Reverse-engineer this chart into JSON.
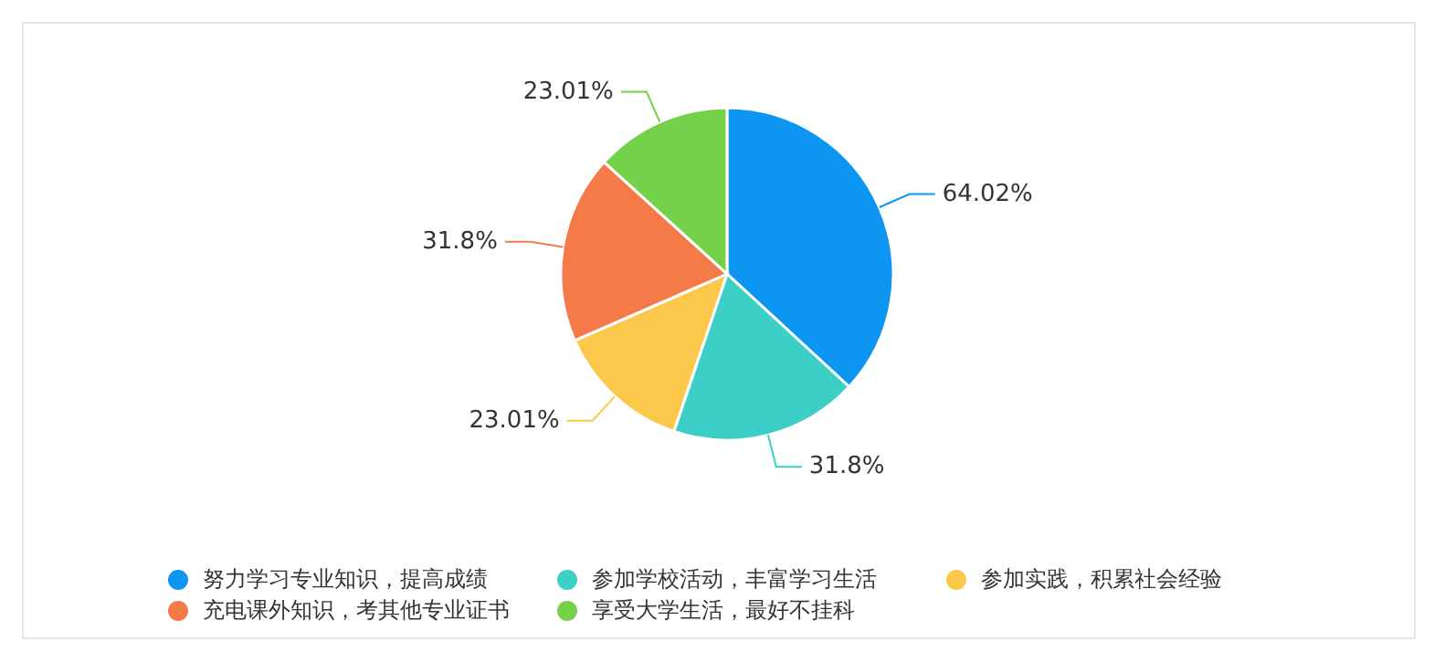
{
  "chart_data": {
    "type": "pie",
    "categories": [
      "努力学习专业知识，提高成绩",
      "参加学校活动，丰富学习生活",
      "参加实践，积累社会经验",
      "充电课外知识，考其他专业证书",
      "享受大学生活，最好不挂科"
    ],
    "values": [
      64.02,
      31.8,
      23.01,
      31.8,
      23.01
    ],
    "value_labels": [
      "64.02%",
      "31.8%",
      "23.01%",
      "31.8%",
      "23.01%"
    ],
    "colors": [
      "#0c96f2",
      "#3ccfc7",
      "#fbc84b",
      "#f57a4a",
      "#76d14a"
    ],
    "legend": "bottom"
  }
}
